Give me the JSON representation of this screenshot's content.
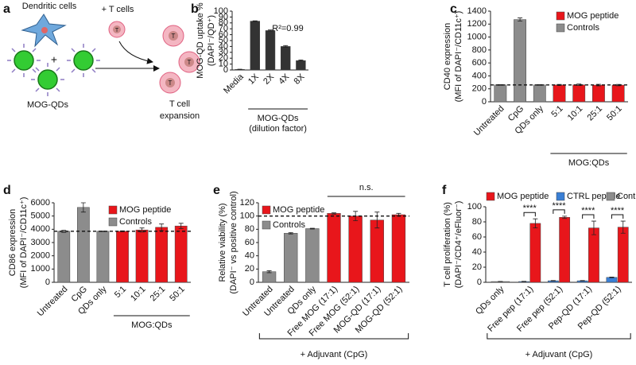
{
  "schematic": {
    "panel": "a",
    "dendritic_cells": "Dendritic cells",
    "t_cells_added": "+ T cells",
    "plus": "+",
    "mog_qds": "MOG-QDs",
    "t_cell": "T",
    "result": [
      "T cell",
      "expansion"
    ]
  },
  "chart_data": [
    {
      "type": "bar",
      "panel": "b",
      "ylabel": [
        "MOG-QD uptake %",
        "(DAPI⁻/QD⁺)"
      ],
      "categories": [
        "Media",
        "1X",
        "2X",
        "4X",
        "8X"
      ],
      "values": [
        1,
        83,
        67,
        40,
        16
      ],
      "errors": [
        0.3,
        0.5,
        1,
        1.5,
        1
      ],
      "color": "#333333",
      "ylim": [
        0,
        100
      ],
      "yticks": [
        0,
        10,
        20,
        30,
        40,
        50,
        60,
        70,
        80,
        90,
        100
      ],
      "group_label": [
        "MOG-QDs",
        "(dilution factor)"
      ],
      "annotations": [
        "R²=0.99"
      ]
    },
    {
      "type": "bar",
      "panel": "c",
      "ylabel": [
        "CD40 expression",
        "(MFI of DAPI⁻/CD11c⁺)"
      ],
      "categories": [
        "Untreated",
        "CpG",
        "QDs only",
        "5:1",
        "10:1",
        "25:1",
        "50:1"
      ],
      "series": [
        {
          "name": "MOG peptide",
          "color": "#e8161b",
          "values": [
            null,
            null,
            null,
            260,
            262,
            258,
            258
          ],
          "errors": [
            null,
            null,
            null,
            8,
            12,
            12,
            10
          ]
        },
        {
          "name": "Controls",
          "color": "#8c8c8c",
          "values": [
            260,
            1270,
            260,
            null,
            null,
            null,
            null
          ],
          "errors": [
            5,
            25,
            5,
            null,
            null,
            null,
            null
          ]
        }
      ],
      "ylim": [
        0,
        1400
      ],
      "yticks": [
        0,
        200,
        400,
        600,
        800,
        1000,
        1200,
        1400
      ],
      "ref_line": 260,
      "group_label": [
        "MOG:QDs"
      ]
    },
    {
      "type": "bar",
      "panel": "d",
      "ylabel": [
        "CD86 expression",
        "(MFI of DAPI⁻/CD11c⁺)"
      ],
      "categories": [
        "Untreated",
        "CpG",
        "QDs only",
        "5:1",
        "10:1",
        "25:1",
        "50:1"
      ],
      "series": [
        {
          "name": "MOG peptide",
          "color": "#e8161b",
          "values": [
            null,
            null,
            null,
            3850,
            3950,
            4150,
            4250
          ],
          "errors": [
            null,
            null,
            null,
            30,
            150,
            250,
            200
          ]
        },
        {
          "name": "Controls",
          "color": "#8c8c8c",
          "values": [
            3850,
            5650,
            3850,
            null,
            null,
            null,
            null
          ],
          "errors": [
            80,
            350,
            20,
            null,
            null,
            null,
            null
          ]
        }
      ],
      "ylim": [
        0,
        6000
      ],
      "yticks": [
        0,
        1000,
        2000,
        3000,
        4000,
        5000,
        6000
      ],
      "ref_line": 3850,
      "group_label": [
        "MOG:QDs"
      ]
    },
    {
      "type": "bar",
      "panel": "e",
      "ylabel": [
        "Relative viability (%)",
        "(DAPI⁻ vs positive control)"
      ],
      "categories": [
        "Untreated",
        "Untreated",
        "QDs only",
        "Free MOG (17:1)",
        "Free MOG (52:1)",
        "MOG-QD (17:1)",
        "MOG-QD (52:1)"
      ],
      "series": [
        {
          "name": "MOG peptide",
          "color": "#e8161b",
          "values": [
            null,
            null,
            null,
            104,
            100,
            94,
            102
          ],
          "errors": [
            null,
            null,
            null,
            1,
            7,
            12,
            2
          ]
        },
        {
          "name": "Controls",
          "color": "#8c8c8c",
          "values": [
            16,
            74,
            81,
            null,
            null,
            null,
            null
          ],
          "errors": [
            1.5,
            1,
            0.5,
            null,
            null,
            null,
            null
          ]
        }
      ],
      "ylim": [
        0,
        120
      ],
      "yticks": [
        0,
        20,
        40,
        60,
        80,
        100,
        120
      ],
      "ref_line": 100,
      "group_label": [
        "+ Adjuvant (CpG)"
      ],
      "annotations": [
        "n.s."
      ]
    },
    {
      "type": "bar",
      "panel": "f",
      "ylabel": [
        "T cell proliferation (%)",
        "(DAPI⁻/CD4⁺/eFluor⁻)"
      ],
      "categories": [
        "QDs only",
        "Free pep (17:1)",
        "Free pep (52:1)",
        "Pep-QD (17:1)",
        "Pep-QD (52:1)"
      ],
      "series": [
        {
          "name": "MOG peptide",
          "color": "#e8161b",
          "values": [
            null,
            78,
            86,
            72,
            73
          ],
          "errors": [
            null,
            6,
            1.5,
            9,
            8
          ]
        },
        {
          "name": "CTRL peptide",
          "color": "#3a7fd5",
          "values": [
            null,
            1,
            2,
            2,
            6.5
          ],
          "errors": [
            null,
            0.3,
            0.3,
            0.3,
            0.4
          ]
        },
        {
          "name": "Controls",
          "color": "#8c8c8c",
          "values": [
            1,
            null,
            null,
            null,
            null
          ],
          "errors": [
            0.2,
            null,
            null,
            null,
            null
          ]
        }
      ],
      "ylim": [
        0,
        100
      ],
      "yticks": [
        0,
        20,
        40,
        60,
        80,
        100
      ],
      "group_label": [
        "+ Adjuvant (CpG)"
      ],
      "annotations": [
        "****",
        "****",
        "****",
        "****"
      ]
    }
  ]
}
